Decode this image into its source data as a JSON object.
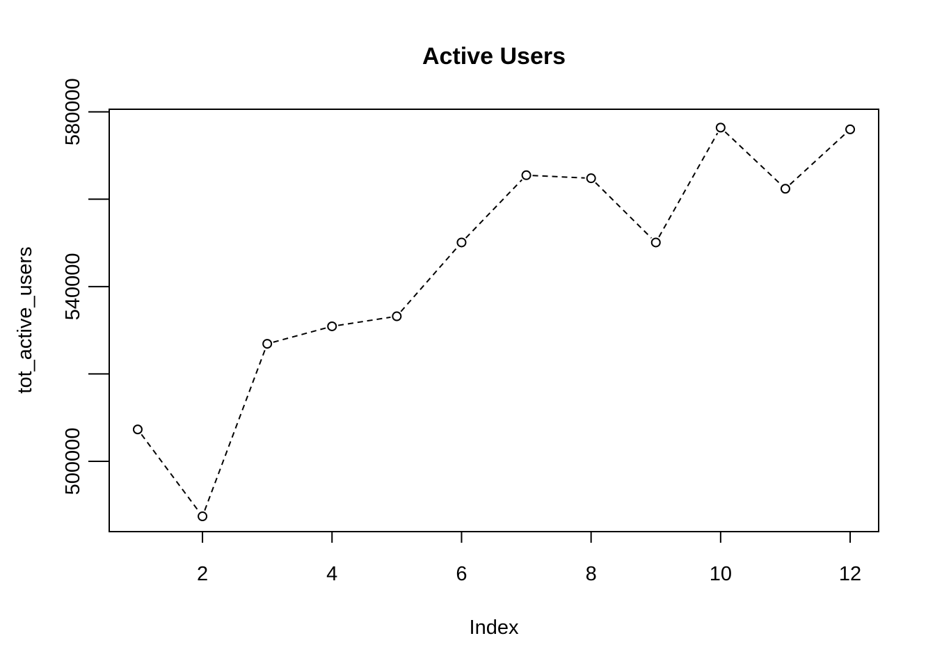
{
  "chart_data": {
    "type": "line",
    "title": "Active Users",
    "xlabel": "Index",
    "ylabel": "tot_active_users",
    "x": [
      1,
      2,
      3,
      4,
      5,
      6,
      7,
      8,
      9,
      10,
      11,
      12
    ],
    "series": [
      {
        "values": [
          507300,
          487400,
          526900,
          530900,
          533200,
          550100,
          565500,
          564800,
          550100,
          576400,
          562400,
          576000
        ]
      }
    ],
    "xlim": [
      0.56,
      12.44
    ],
    "ylim": [
      483900,
      580600
    ],
    "x_ticks": [
      2,
      4,
      6,
      8,
      10,
      12
    ],
    "y_ticks": [
      500000,
      520000,
      540000,
      560000,
      580000
    ],
    "y_tick_labels": [
      {
        "value": 500000,
        "label": "500000"
      },
      {
        "value": 540000,
        "label": "540000"
      },
      {
        "value": 580000,
        "label": "580000"
      }
    ],
    "line_style": "dashed",
    "marker": "open-circle",
    "grid": false,
    "legend": "none",
    "colors": {
      "line": "#000000",
      "marker": "#000000",
      "axis": "#000000",
      "background": "#ffffff"
    }
  }
}
